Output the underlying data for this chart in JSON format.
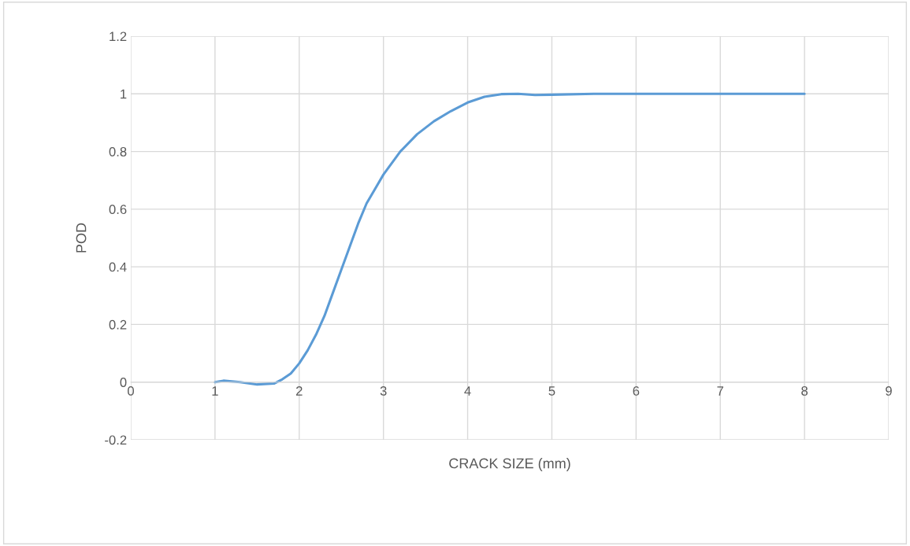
{
  "chart_data": {
    "type": "line",
    "xlabel": "CRACK SIZE (mm)",
    "ylabel": "POD",
    "xlim": [
      0,
      9
    ],
    "xticks": [
      0,
      1,
      2,
      3,
      4,
      5,
      6,
      7,
      8,
      9
    ],
    "ylim": [
      -0.2,
      1.2
    ],
    "yticks": [
      {
        "value": -0.2,
        "label": "-0.2"
      },
      0,
      0.2,
      0.4,
      0.6,
      0.8,
      1,
      1.2
    ],
    "grid": true,
    "line_style": "solid",
    "marker": "none",
    "series": [
      {
        "color": "#5b9bd5",
        "x": [
          1,
          1.1,
          1.3,
          1.5,
          1.7,
          1.8,
          1.9,
          2.0,
          2.1,
          2.2,
          2.3,
          2.4,
          2.5,
          2.6,
          2.7,
          2.8,
          2.9,
          3.0,
          3.2,
          3.4,
          3.6,
          3.8,
          4.0,
          4.2,
          4.4,
          4.6,
          4.8,
          5.0,
          5.5,
          6,
          7,
          8
        ],
        "values": [
          0,
          0.005,
          0.0,
          -0.008,
          -0.005,
          0.01,
          0.03,
          0.065,
          0.11,
          0.165,
          0.23,
          0.31,
          0.39,
          0.47,
          0.55,
          0.62,
          0.67,
          0.72,
          0.8,
          0.86,
          0.905,
          0.94,
          0.97,
          0.99,
          0.999,
          1.0,
          0.996,
          0.997,
          1.0,
          1.0,
          1.0,
          1.0
        ]
      }
    ]
  }
}
